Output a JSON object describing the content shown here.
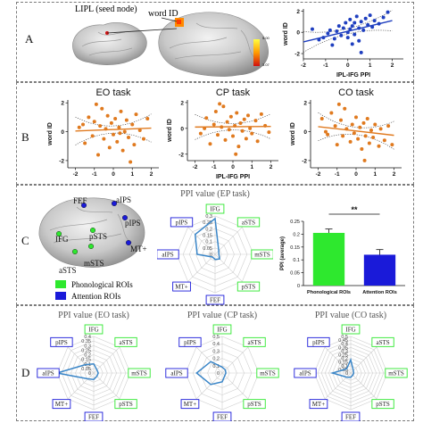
{
  "panels": {
    "A": "A",
    "B": "B",
    "C": "C",
    "D": "D"
  },
  "panelA": {
    "seed_label": "LIPL (seed node)",
    "target_label": "word ID",
    "colorbar_top": "5.00",
    "colorbar_bottom": "3.07"
  },
  "chart_data": [
    {
      "id": "A-scatter",
      "type": "scatter",
      "xlabel": "IPL-IFG PPI",
      "ylabel": "word ID",
      "xlim": [
        -2,
        2.5
      ],
      "ylim": [
        -2.5,
        2.2
      ],
      "xticks": [
        "-2",
        "-1",
        "0",
        "1",
        "2"
      ],
      "yticks": [
        "-2",
        "0",
        "2"
      ],
      "color": "#1f3fbf",
      "points": [
        [
          -1.3,
          -0.7
        ],
        [
          -1.1,
          -0.5
        ],
        [
          -0.9,
          -0.1
        ],
        [
          -0.8,
          0.2
        ],
        [
          -0.6,
          -0.6
        ],
        [
          -0.5,
          0.1
        ],
        [
          -0.4,
          0.6
        ],
        [
          -0.3,
          -0.3
        ],
        [
          -0.2,
          0.4
        ],
        [
          -0.1,
          0.9
        ],
        [
          0,
          0.0
        ],
        [
          0,
          -0.5
        ],
        [
          0.1,
          0.3
        ],
        [
          0.1,
          1.2
        ],
        [
          0.2,
          0.6
        ],
        [
          0.3,
          -0.2
        ],
        [
          0.3,
          0.9
        ],
        [
          0.4,
          1.5
        ],
        [
          0.5,
          0.4
        ],
        [
          0.5,
          -0.8
        ],
        [
          0.6,
          1.0
        ],
        [
          0.7,
          0.2
        ],
        [
          0.8,
          1.3
        ],
        [
          0.9,
          0.7
        ],
        [
          1.0,
          1.6
        ],
        [
          1.1,
          0.5
        ],
        [
          1.2,
          1.1
        ],
        [
          1.4,
          0.8
        ],
        [
          1.6,
          1.4
        ],
        [
          -0.7,
          -1.2
        ],
        [
          0.2,
          -1.1
        ],
        [
          -1.6,
          0.3
        ],
        [
          0.6,
          -1.9
        ],
        [
          1.8,
          1.9
        ]
      ],
      "fit": [
        [
          -2,
          -0.9
        ],
        [
          2,
          1.1
        ]
      ]
    },
    {
      "id": "B-EO",
      "type": "scatter",
      "title": "EO task",
      "xlabel": "",
      "ylabel": "word ID",
      "xlim": [
        -2.4,
        2.4
      ],
      "ylim": [
        -2.5,
        2.2
      ],
      "xticks": [
        "-2",
        "-1",
        "0",
        "1",
        "2"
      ],
      "yticks": [
        "-2",
        "0",
        "2"
      ],
      "color": "#e07a1f",
      "points": [
        [
          -1.8,
          0.3
        ],
        [
          -1.5,
          -0.8
        ],
        [
          -1.3,
          1.0
        ],
        [
          -1.1,
          -0.3
        ],
        [
          -1.0,
          0.7
        ],
        [
          -0.8,
          -1.6
        ],
        [
          -0.7,
          0.4
        ],
        [
          -0.6,
          1.6
        ],
        [
          -0.5,
          -0.5
        ],
        [
          -0.4,
          0.2
        ],
        [
          -0.3,
          1.1
        ],
        [
          -0.2,
          -1.1
        ],
        [
          -0.1,
          0.6
        ],
        [
          0,
          -0.2
        ],
        [
          0.1,
          0.9
        ],
        [
          0.2,
          -0.7
        ],
        [
          0.3,
          0.3
        ],
        [
          0.4,
          1.4
        ],
        [
          0.5,
          -1.3
        ],
        [
          0.6,
          0.0
        ],
        [
          0.7,
          0.8
        ],
        [
          0.8,
          -0.4
        ],
        [
          1.0,
          0.5
        ],
        [
          1.1,
          -0.9
        ],
        [
          1.2,
          1.2
        ],
        [
          1.4,
          0.1
        ],
        [
          1.6,
          -0.5
        ],
        [
          1.8,
          0.9
        ],
        [
          -1.6,
          0.5
        ],
        [
          0.9,
          -2.1
        ],
        [
          -0.9,
          1.9
        ],
        [
          0.35,
          -0.1
        ]
      ],
      "fit": [
        [
          -2,
          0.05
        ],
        [
          2,
          0.25
        ]
      ]
    },
    {
      "id": "B-CP",
      "type": "scatter",
      "title": "CP task",
      "xlabel": "IPL-IFG PPI",
      "ylabel": "word ID",
      "xlim": [
        -2.4,
        2.4
      ],
      "ylim": [
        -2.5,
        2.2
      ],
      "xticks": [
        "-2",
        "-1",
        "0",
        "1",
        "2"
      ],
      "yticks": [
        "-2",
        "0",
        "2"
      ],
      "color": "#e07a1f",
      "points": [
        [
          -1.7,
          -0.4
        ],
        [
          -1.4,
          0.8
        ],
        [
          -1.2,
          -1.2
        ],
        [
          -1.0,
          0.3
        ],
        [
          -0.9,
          1.3
        ],
        [
          -0.8,
          -0.5
        ],
        [
          -0.6,
          0.1
        ],
        [
          -0.5,
          1.7
        ],
        [
          -0.4,
          -0.9
        ],
        [
          -0.3,
          0.5
        ],
        [
          -0.2,
          -0.1
        ],
        [
          -0.1,
          0.9
        ],
        [
          0,
          -0.6
        ],
        [
          0.1,
          0.2
        ],
        [
          0.2,
          1.2
        ],
        [
          0.3,
          -1.4
        ],
        [
          0.4,
          0.4
        ],
        [
          0.5,
          -0.2
        ],
        [
          0.6,
          0.7
        ],
        [
          0.7,
          -0.8
        ],
        [
          0.8,
          1.0
        ],
        [
          0.9,
          0.0
        ],
        [
          1.0,
          -0.4
        ],
        [
          1.2,
          0.6
        ],
        [
          1.3,
          -1.0
        ],
        [
          1.5,
          1.1
        ],
        [
          1.7,
          0.2
        ],
        [
          1.9,
          -0.3
        ],
        [
          -1.5,
          0.0
        ],
        [
          0.15,
          -2.0
        ],
        [
          -0.7,
          1.9
        ]
      ],
      "fit": [
        [
          -2,
          0.1
        ],
        [
          2,
          0.15
        ]
      ]
    },
    {
      "id": "B-CO",
      "type": "scatter",
      "title": "CO task",
      "xlabel": "",
      "ylabel": "word ID",
      "xlim": [
        -2.4,
        2.4
      ],
      "ylim": [
        -2.5,
        2.2
      ],
      "xticks": [
        "-2",
        "-1",
        "0",
        "1",
        "2"
      ],
      "yticks": [
        "-2",
        "0",
        "2"
      ],
      "color": "#e07a1f",
      "points": [
        [
          -1.8,
          0.9
        ],
        [
          -1.5,
          -0.2
        ],
        [
          -1.3,
          1.3
        ],
        [
          -1.1,
          0.4
        ],
        [
          -1.0,
          -0.9
        ],
        [
          -0.8,
          0.8
        ],
        [
          -0.7,
          -0.3
        ],
        [
          -0.6,
          1.6
        ],
        [
          -0.5,
          0.2
        ],
        [
          -0.3,
          -0.7
        ],
        [
          -0.2,
          0.5
        ],
        [
          -0.1,
          -0.1
        ],
        [
          0,
          1.0
        ],
        [
          0.1,
          -0.5
        ],
        [
          0.2,
          0.3
        ],
        [
          0.3,
          -1.2
        ],
        [
          0.4,
          0.6
        ],
        [
          0.5,
          -0.3
        ],
        [
          0.6,
          0.9
        ],
        [
          0.7,
          -0.8
        ],
        [
          0.8,
          0.1
        ],
        [
          0.9,
          -0.4
        ],
        [
          1.0,
          0.5
        ],
        [
          1.2,
          -1.0
        ],
        [
          1.3,
          0.2
        ],
        [
          1.5,
          -0.6
        ],
        [
          1.7,
          0.4
        ],
        [
          1.9,
          -0.9
        ],
        [
          -1.6,
          0.0
        ],
        [
          0.45,
          -2.0
        ],
        [
          -0.9,
          1.9
        ]
      ],
      "fit": [
        [
          -2,
          0.35
        ],
        [
          2,
          -0.25
        ]
      ]
    },
    {
      "id": "C-radar",
      "type": "radar",
      "title": "PPI value (EP task)",
      "axes": [
        "IFG",
        "aSTS",
        "mSTS",
        "pSTS",
        "FEF",
        "MT+",
        "aIPS",
        "pIPS"
      ],
      "ticks": [
        "0.3",
        "0.25",
        "0.2",
        "0.15",
        "0.1",
        "0.05",
        "0"
      ],
      "rmax": 0.3,
      "values": [
        0.28,
        0.04,
        0.03,
        0.05,
        0.04,
        0.03,
        0.14,
        0.22
      ]
    },
    {
      "id": "C-bar",
      "type": "bar",
      "ylabel": "PPI (average)",
      "ylim": [
        0,
        0.25
      ],
      "yticks": [
        "0",
        "0.05",
        "0.1",
        "0.15",
        "0.2",
        "0.25"
      ],
      "categories": [
        "Phonological ROIs",
        "Attention ROIs"
      ],
      "values": [
        0.205,
        0.12
      ],
      "errors": [
        0.015,
        0.02
      ],
      "colors": [
        "#2ee82e",
        "#1a1ad9"
      ],
      "significance": "**"
    },
    {
      "id": "D-EO",
      "type": "radar",
      "title": "PPI value (EO task)",
      "axes": [
        "IFG",
        "aSTS",
        "mSTS",
        "pSTS",
        "FEF",
        "MT+",
        "aIPS",
        "pIPS"
      ],
      "ticks": [
        "0.4",
        "0.35",
        "0.3",
        "0.25",
        "0.2",
        "0.15",
        "0.1",
        "0.05",
        "0"
      ],
      "rmax": 0.4,
      "values": [
        0.1,
        0.05,
        0.05,
        0.05,
        0.07,
        0.09,
        0.4,
        0.13
      ]
    },
    {
      "id": "D-CP",
      "type": "radar",
      "title": "PPI value (CP task)",
      "axes": [
        "IFG",
        "aSTS",
        "mSTS",
        "pSTS",
        "FEF",
        "MT+",
        "aIPS",
        "pIPS"
      ],
      "ticks": [
        "0.5",
        "0.4",
        "0.3",
        "0.2",
        "0.1",
        "0"
      ],
      "rmax": 0.5,
      "values": [
        0.08,
        0.06,
        0.05,
        0.05,
        0.12,
        0.22,
        0.35,
        0.22
      ]
    },
    {
      "id": "D-CO",
      "type": "radar",
      "title": "PPI value (CO task)",
      "axes": [
        "IFG",
        "aSTS",
        "mSTS",
        "pSTS",
        "FEF",
        "MT+",
        "aIPS",
        "pIPS"
      ],
      "ticks": [
        "0.5",
        "0.45",
        "0.4",
        "0.35",
        "0.3",
        "0.25",
        "0.2",
        "0.15",
        "0.1",
        "0.05",
        "0"
      ],
      "rmax": 0.5,
      "values": [
        0.18,
        0.05,
        0.04,
        0.04,
        0.06,
        0.08,
        0.25,
        0.08
      ]
    }
  ],
  "brain_rois": [
    {
      "label": "FEF",
      "color": "#1a1ad9"
    },
    {
      "label": "aIPS",
      "color": "#1a1ad9"
    },
    {
      "label": "pIPS",
      "color": "#1a1ad9"
    },
    {
      "label": "IFG",
      "color": "#2ee82e"
    },
    {
      "label": "pSTS",
      "color": "#2ee82e"
    },
    {
      "label": "MT+",
      "color": "#1a1ad9"
    },
    {
      "label": "mSTS",
      "color": "#2ee82e"
    },
    {
      "label": "aSTS",
      "color": "#2ee82e"
    }
  ],
  "legend": [
    {
      "label": "Phonological ROIs",
      "color": "#2ee82e"
    },
    {
      "label": "Attention ROIs",
      "color": "#1a1ad9"
    }
  ],
  "roi_group": {
    "IFG": "p",
    "aSTS": "p",
    "mSTS": "p",
    "pSTS": "p",
    "FEF": "a",
    "MT+": "a",
    "aIPS": "a",
    "pIPS": "a"
  },
  "colors": {
    "phonological": "#2ee82e",
    "attention": "#1a1ad9",
    "radar_line": "#3a86c8"
  }
}
